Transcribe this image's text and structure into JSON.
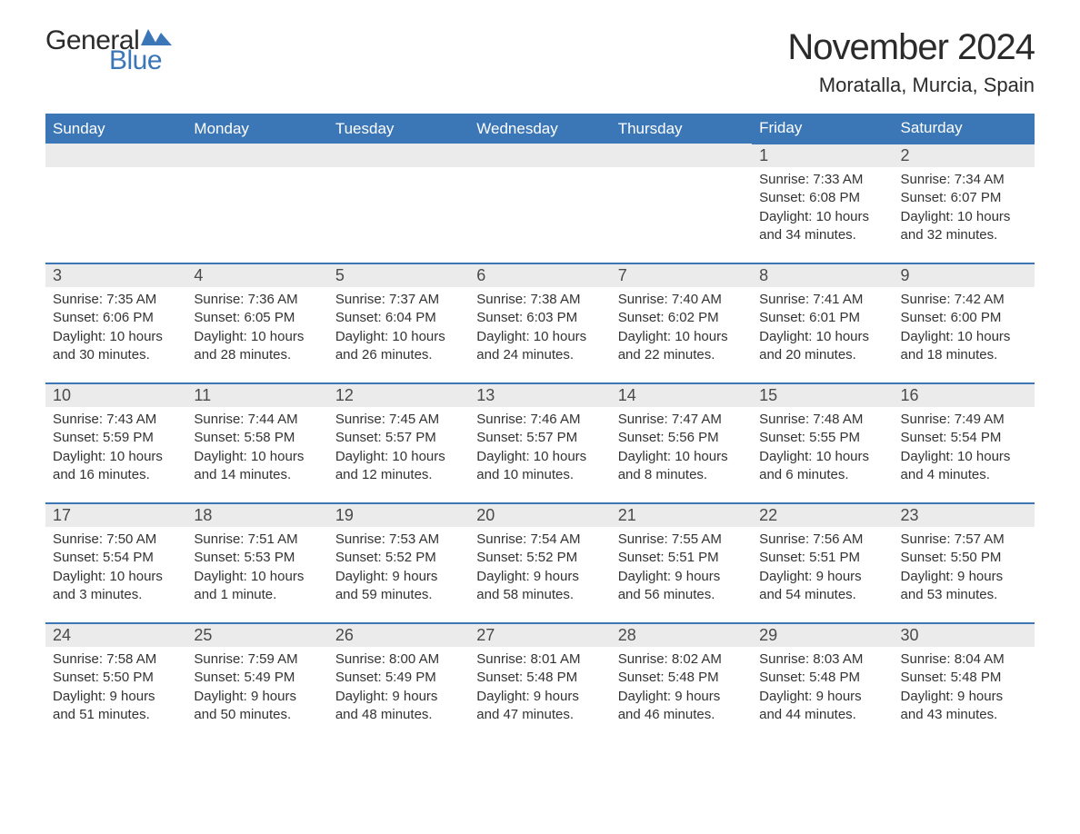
{
  "logo": {
    "text_general": "General",
    "text_blue": "Blue",
    "flag_color": "#3b76b6"
  },
  "header": {
    "month_title": "November 2024",
    "location": "Moratalla, Murcia, Spain"
  },
  "colors": {
    "header_bg": "#3b76b6",
    "header_text": "#ffffff",
    "day_strip_bg": "#ebebeb",
    "day_strip_text": "#4a4a4a",
    "cell_border": "#3b76b6",
    "body_text": "#333333",
    "page_bg": "#ffffff"
  },
  "fonts": {
    "title_size_pt": 30,
    "location_size_pt": 16,
    "header_cell_size_pt": 13,
    "day_number_size_pt": 14,
    "body_size_pt": 11
  },
  "calendar": {
    "columns": [
      "Sunday",
      "Monday",
      "Tuesday",
      "Wednesday",
      "Thursday",
      "Friday",
      "Saturday"
    ],
    "weeks": [
      [
        null,
        null,
        null,
        null,
        null,
        {
          "day": "1",
          "sunrise": "Sunrise: 7:33 AM",
          "sunset": "Sunset: 6:08 PM",
          "daylight1": "Daylight: 10 hours",
          "daylight2": "and 34 minutes."
        },
        {
          "day": "2",
          "sunrise": "Sunrise: 7:34 AM",
          "sunset": "Sunset: 6:07 PM",
          "daylight1": "Daylight: 10 hours",
          "daylight2": "and 32 minutes."
        }
      ],
      [
        {
          "day": "3",
          "sunrise": "Sunrise: 7:35 AM",
          "sunset": "Sunset: 6:06 PM",
          "daylight1": "Daylight: 10 hours",
          "daylight2": "and 30 minutes."
        },
        {
          "day": "4",
          "sunrise": "Sunrise: 7:36 AM",
          "sunset": "Sunset: 6:05 PM",
          "daylight1": "Daylight: 10 hours",
          "daylight2": "and 28 minutes."
        },
        {
          "day": "5",
          "sunrise": "Sunrise: 7:37 AM",
          "sunset": "Sunset: 6:04 PM",
          "daylight1": "Daylight: 10 hours",
          "daylight2": "and 26 minutes."
        },
        {
          "day": "6",
          "sunrise": "Sunrise: 7:38 AM",
          "sunset": "Sunset: 6:03 PM",
          "daylight1": "Daylight: 10 hours",
          "daylight2": "and 24 minutes."
        },
        {
          "day": "7",
          "sunrise": "Sunrise: 7:40 AM",
          "sunset": "Sunset: 6:02 PM",
          "daylight1": "Daylight: 10 hours",
          "daylight2": "and 22 minutes."
        },
        {
          "day": "8",
          "sunrise": "Sunrise: 7:41 AM",
          "sunset": "Sunset: 6:01 PM",
          "daylight1": "Daylight: 10 hours",
          "daylight2": "and 20 minutes."
        },
        {
          "day": "9",
          "sunrise": "Sunrise: 7:42 AM",
          "sunset": "Sunset: 6:00 PM",
          "daylight1": "Daylight: 10 hours",
          "daylight2": "and 18 minutes."
        }
      ],
      [
        {
          "day": "10",
          "sunrise": "Sunrise: 7:43 AM",
          "sunset": "Sunset: 5:59 PM",
          "daylight1": "Daylight: 10 hours",
          "daylight2": "and 16 minutes."
        },
        {
          "day": "11",
          "sunrise": "Sunrise: 7:44 AM",
          "sunset": "Sunset: 5:58 PM",
          "daylight1": "Daylight: 10 hours",
          "daylight2": "and 14 minutes."
        },
        {
          "day": "12",
          "sunrise": "Sunrise: 7:45 AM",
          "sunset": "Sunset: 5:57 PM",
          "daylight1": "Daylight: 10 hours",
          "daylight2": "and 12 minutes."
        },
        {
          "day": "13",
          "sunrise": "Sunrise: 7:46 AM",
          "sunset": "Sunset: 5:57 PM",
          "daylight1": "Daylight: 10 hours",
          "daylight2": "and 10 minutes."
        },
        {
          "day": "14",
          "sunrise": "Sunrise: 7:47 AM",
          "sunset": "Sunset: 5:56 PM",
          "daylight1": "Daylight: 10 hours",
          "daylight2": "and 8 minutes."
        },
        {
          "day": "15",
          "sunrise": "Sunrise: 7:48 AM",
          "sunset": "Sunset: 5:55 PM",
          "daylight1": "Daylight: 10 hours",
          "daylight2": "and 6 minutes."
        },
        {
          "day": "16",
          "sunrise": "Sunrise: 7:49 AM",
          "sunset": "Sunset: 5:54 PM",
          "daylight1": "Daylight: 10 hours",
          "daylight2": "and 4 minutes."
        }
      ],
      [
        {
          "day": "17",
          "sunrise": "Sunrise: 7:50 AM",
          "sunset": "Sunset: 5:54 PM",
          "daylight1": "Daylight: 10 hours",
          "daylight2": "and 3 minutes."
        },
        {
          "day": "18",
          "sunrise": "Sunrise: 7:51 AM",
          "sunset": "Sunset: 5:53 PM",
          "daylight1": "Daylight: 10 hours",
          "daylight2": "and 1 minute."
        },
        {
          "day": "19",
          "sunrise": "Sunrise: 7:53 AM",
          "sunset": "Sunset: 5:52 PM",
          "daylight1": "Daylight: 9 hours",
          "daylight2": "and 59 minutes."
        },
        {
          "day": "20",
          "sunrise": "Sunrise: 7:54 AM",
          "sunset": "Sunset: 5:52 PM",
          "daylight1": "Daylight: 9 hours",
          "daylight2": "and 58 minutes."
        },
        {
          "day": "21",
          "sunrise": "Sunrise: 7:55 AM",
          "sunset": "Sunset: 5:51 PM",
          "daylight1": "Daylight: 9 hours",
          "daylight2": "and 56 minutes."
        },
        {
          "day": "22",
          "sunrise": "Sunrise: 7:56 AM",
          "sunset": "Sunset: 5:51 PM",
          "daylight1": "Daylight: 9 hours",
          "daylight2": "and 54 minutes."
        },
        {
          "day": "23",
          "sunrise": "Sunrise: 7:57 AM",
          "sunset": "Sunset: 5:50 PM",
          "daylight1": "Daylight: 9 hours",
          "daylight2": "and 53 minutes."
        }
      ],
      [
        {
          "day": "24",
          "sunrise": "Sunrise: 7:58 AM",
          "sunset": "Sunset: 5:50 PM",
          "daylight1": "Daylight: 9 hours",
          "daylight2": "and 51 minutes."
        },
        {
          "day": "25",
          "sunrise": "Sunrise: 7:59 AM",
          "sunset": "Sunset: 5:49 PM",
          "daylight1": "Daylight: 9 hours",
          "daylight2": "and 50 minutes."
        },
        {
          "day": "26",
          "sunrise": "Sunrise: 8:00 AM",
          "sunset": "Sunset: 5:49 PM",
          "daylight1": "Daylight: 9 hours",
          "daylight2": "and 48 minutes."
        },
        {
          "day": "27",
          "sunrise": "Sunrise: 8:01 AM",
          "sunset": "Sunset: 5:48 PM",
          "daylight1": "Daylight: 9 hours",
          "daylight2": "and 47 minutes."
        },
        {
          "day": "28",
          "sunrise": "Sunrise: 8:02 AM",
          "sunset": "Sunset: 5:48 PM",
          "daylight1": "Daylight: 9 hours",
          "daylight2": "and 46 minutes."
        },
        {
          "day": "29",
          "sunrise": "Sunrise: 8:03 AM",
          "sunset": "Sunset: 5:48 PM",
          "daylight1": "Daylight: 9 hours",
          "daylight2": "and 44 minutes."
        },
        {
          "day": "30",
          "sunrise": "Sunrise: 8:04 AM",
          "sunset": "Sunset: 5:48 PM",
          "daylight1": "Daylight: 9 hours",
          "daylight2": "and 43 minutes."
        }
      ]
    ]
  }
}
